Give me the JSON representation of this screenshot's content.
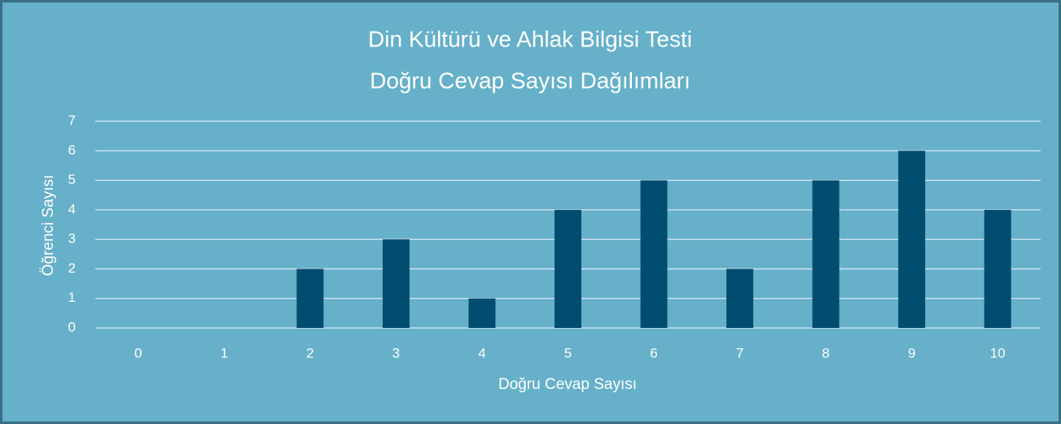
{
  "chart_data": {
    "type": "bar",
    "title": [
      "Din Kültürü ve Ahlak Bilgisi Testi",
      "Doğru Cevap Sayısı Dağılımları"
    ],
    "x_label": "Doğru Cevap Sayısı",
    "y_label": "Öğrenci Sayısı",
    "categories": [
      "0",
      "1",
      "2",
      "3",
      "4",
      "5",
      "6",
      "7",
      "8",
      "9",
      "10"
    ],
    "values": [
      0,
      0,
      2,
      3,
      1,
      4,
      5,
      2,
      5,
      6,
      4
    ],
    "color": "#004d70",
    "ylim": [
      0,
      7
    ],
    "yticks": [
      0,
      1,
      2,
      3,
      4,
      5,
      6,
      7
    ],
    "grid": true
  }
}
